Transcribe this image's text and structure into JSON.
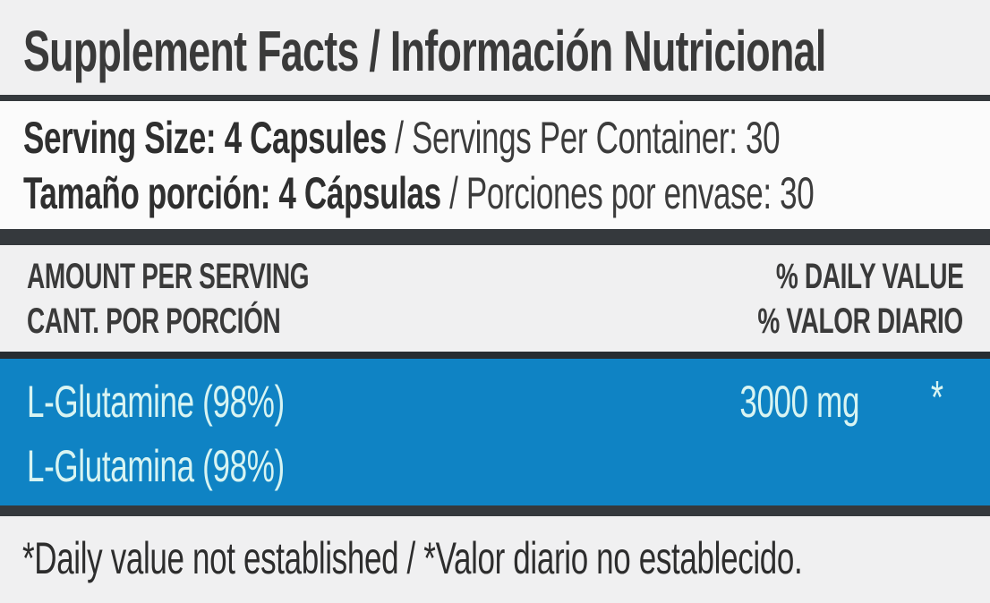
{
  "label": {
    "title": "Supplement Facts / Información Nutricional",
    "serving": {
      "en_bold": "Serving Size: 4 Capsules",
      "en_rest": " / Servings Per Container: 30",
      "es_bold": "Tamaño porción: 4 Cápsulas",
      "es_rest": " / Porciones por envase: 30"
    },
    "columns": {
      "amount_en": "AMOUNT PER SERVING",
      "amount_es": "CANT. POR PORCIÓN",
      "dv_en": "% DAILY VALUE",
      "dv_es": "% VALOR DIARIO"
    },
    "rows": [
      {
        "name_en": "L-Glutamine (98%)",
        "name_es": "L-Glutamina (98%)",
        "amount": "3000 mg",
        "daily_value": "*"
      }
    ],
    "footnote": "*Daily value not established / *Valor diario no establecido.",
    "colors": {
      "highlight_bg": "#0f83c4",
      "highlight_text": "#d8f4f2",
      "bar_dark": "#35393d",
      "bar_darker": "#272c31",
      "page_bg": "#f0f0f1",
      "panel_bg": "#fbfbfb",
      "text_dark": "#333333"
    }
  }
}
